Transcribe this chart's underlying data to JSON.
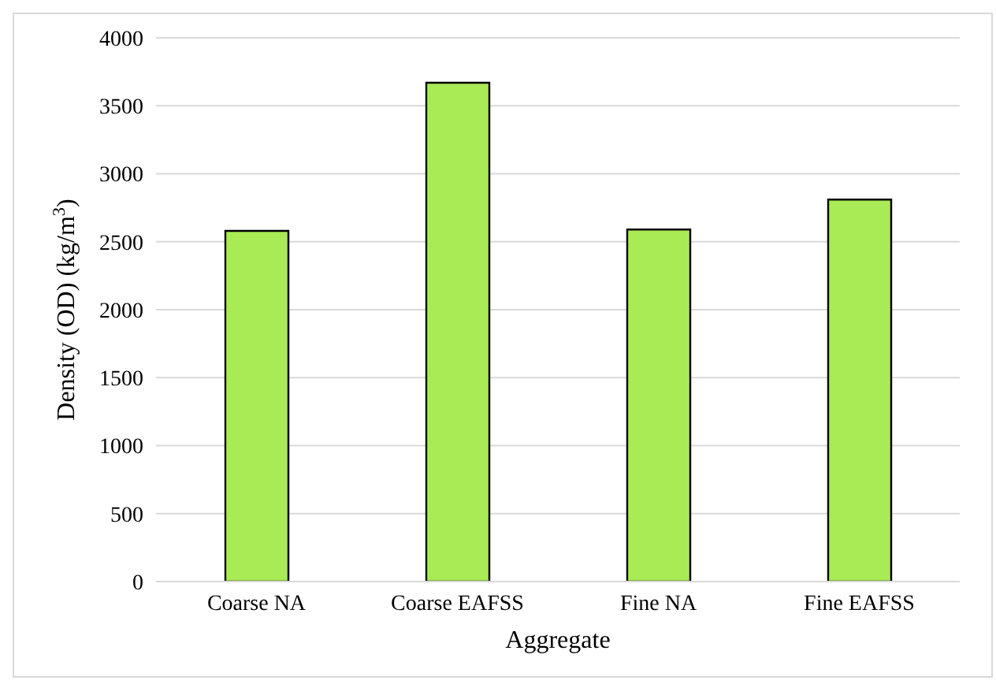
{
  "chart_data": {
    "type": "bar",
    "xlabel": "Aggregate",
    "ylabel": "Density (OD) (kg/m$^{3}$)",
    "categories": [
      "Coarse NA",
      "Coarse EAFSS",
      "Fine NA",
      "Fine EAFSS"
    ],
    "values": [
      2580,
      3670,
      2590,
      2810
    ],
    "color": "#a9eb55",
    "ylim": [
      0,
      4000
    ],
    "yticks": [
      0,
      500,
      1000,
      1500,
      2000,
      2500,
      3000,
      3500,
      4000
    ],
    "grid": "y"
  }
}
